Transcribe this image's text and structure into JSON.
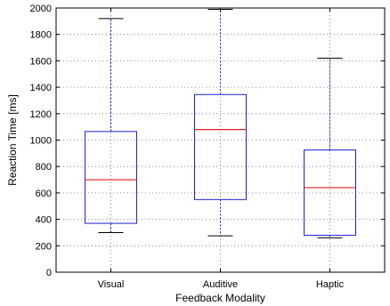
{
  "chart_data": {
    "type": "box",
    "xlabel": "Feedback Modality",
    "ylabel": "Reaction Time [ms]",
    "ylim": [
      0,
      2000
    ],
    "yticks": [
      0,
      200,
      400,
      600,
      800,
      1000,
      1200,
      1400,
      1600,
      1800,
      2000
    ],
    "grid": true,
    "categories": [
      "Visual",
      "Auditive",
      "Haptic"
    ],
    "boxes": [
      {
        "label": "Visual",
        "whisker_low": 300,
        "q1": 370,
        "median": 700,
        "q3": 1065,
        "whisker_high": 1920
      },
      {
        "label": "Auditive",
        "whisker_low": 275,
        "q1": 550,
        "median": 1080,
        "q3": 1345,
        "whisker_high": 1990
      },
      {
        "label": "Haptic",
        "whisker_low": 260,
        "q1": 280,
        "median": 640,
        "q3": 925,
        "whisker_high": 1620
      }
    ],
    "colors": {
      "box": "#1f1fd0",
      "whisker": "#1f1fd0",
      "median": "#e02020",
      "cap": "#000000"
    }
  }
}
